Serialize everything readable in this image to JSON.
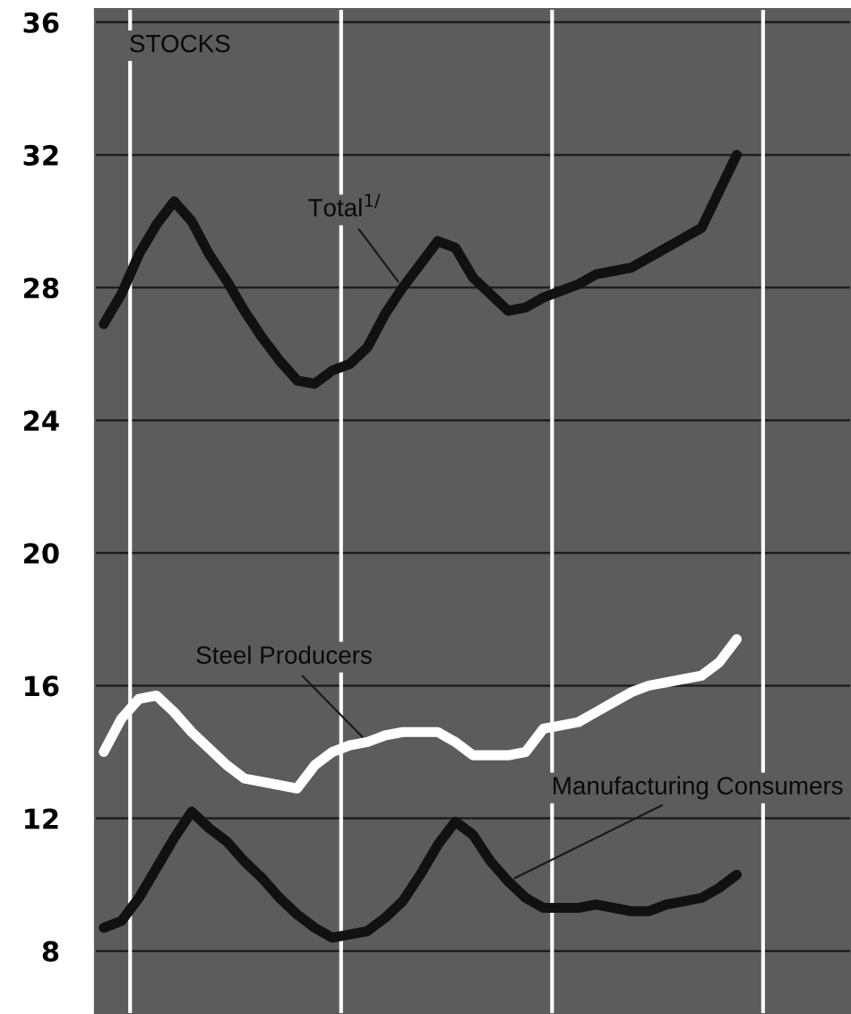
{
  "chart_data": {
    "type": "line",
    "title": "STOCKS",
    "categories": [
      null,
      null,
      null,
      null,
      null,
      null,
      null,
      null,
      null,
      null,
      null,
      null,
      null,
      null,
      null,
      null,
      null,
      null,
      null,
      null,
      null,
      null,
      null,
      null,
      null,
      null,
      null,
      null,
      null,
      null,
      null,
      null,
      null,
      null,
      null,
      null,
      null,
      null,
      null,
      null,
      null,
      null,
      null
    ],
    "ylim": [
      6.1,
      36.4
    ],
    "yticks": [
      8,
      12,
      16,
      20,
      24,
      28,
      32,
      36
    ],
    "grid": "y",
    "legend": false,
    "marker": "none",
    "line_style": "solid",
    "series": [
      {
        "name": "Total$^{1/}$",
        "color": "#111111",
        "values": [
          26.9,
          27.8,
          29.0,
          29.9,
          30.6,
          30.0,
          29.0,
          28.2,
          27.3,
          26.5,
          25.8,
          25.2,
          25.1,
          25.5,
          25.7,
          26.2,
          27.2,
          28.0,
          28.7,
          29.4,
          29.2,
          28.3,
          27.8,
          27.3,
          27.4,
          27.7,
          27.9,
          28.1,
          28.4,
          28.5,
          28.6,
          28.9,
          29.2,
          29.5,
          29.8,
          30.9,
          32.0,
          null,
          null,
          null,
          null,
          null,
          null
        ]
      },
      {
        "name": "Steel Producers",
        "color": "#ffffff",
        "values": [
          14.0,
          15.0,
          15.6,
          15.7,
          15.2,
          14.6,
          14.1,
          13.6,
          13.2,
          13.1,
          13.0,
          12.9,
          13.6,
          14.0,
          14.2,
          14.3,
          14.5,
          14.6,
          14.6,
          14.6,
          14.3,
          13.9,
          13.9,
          13.9,
          14.0,
          14.7,
          14.8,
          14.9,
          15.2,
          15.5,
          15.8,
          16.0,
          16.1,
          16.2,
          16.3,
          16.7,
          17.4,
          null,
          null,
          null,
          null,
          null,
          null
        ]
      },
      {
        "name": "Manufacturing Consumers",
        "color": "#111111",
        "values": [
          8.7,
          8.9,
          9.6,
          10.5,
          11.4,
          12.2,
          11.7,
          11.3,
          10.7,
          10.2,
          9.6,
          9.1,
          8.7,
          8.4,
          8.5,
          8.6,
          9.0,
          9.5,
          10.3,
          11.2,
          11.9,
          11.5,
          10.7,
          10.1,
          9.6,
          9.3,
          9.3,
          9.3,
          9.4,
          9.3,
          9.2,
          9.2,
          9.4,
          9.5,
          9.6,
          9.9,
          10.3,
          null,
          null,
          null,
          null,
          null,
          null
        ]
      }
    ]
  }
}
